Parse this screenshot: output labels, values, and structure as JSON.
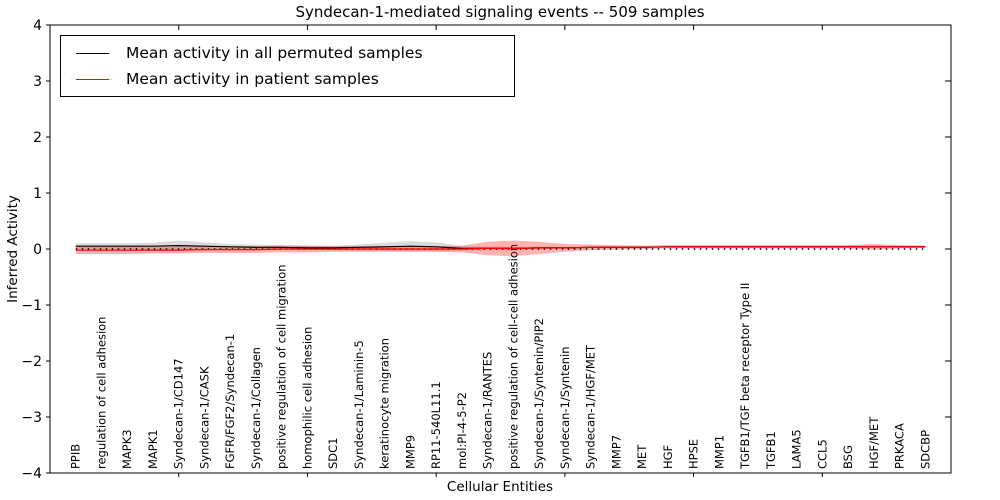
{
  "title": "Syndecan-1-mediated signaling events -- 509 samples",
  "axes": {
    "ylabel": "Inferred Activity",
    "xlabel": "Cellular Entities",
    "ytick_labels": [
      "4",
      "3",
      "2",
      "1",
      "0",
      "−1",
      "−2",
      "−3",
      "−4"
    ],
    "ytick_values": [
      4,
      3,
      2,
      1,
      0,
      -1,
      -2,
      -3,
      -4
    ]
  },
  "legend": {
    "entries": [
      {
        "label": "Mean activity in all permuted samples",
        "color": "#000000"
      },
      {
        "label": "Mean activity in patient samples",
        "color": "#ff0000"
      }
    ]
  },
  "chart_data": {
    "type": "line",
    "title": "Syndecan-1-mediated signaling events -- 509 samples",
    "xlabel": "Cellular Entities",
    "ylabel": "Inferred Activity",
    "ylim": [
      -4,
      4
    ],
    "xlim": [
      0,
      35
    ],
    "grid": false,
    "legend_position": "upper left",
    "categories": [
      "PPIB",
      "regulation of cell adhesion",
      "MAPK3",
      "MAPK1",
      "Syndecan-1/CD147",
      "Syndecan-1/CASK",
      "FGFR/FGF2/Syndecan-1",
      "Syndecan-1/Collagen",
      "positive regulation of cell migration",
      "homophilic cell adhesion",
      "SDC1",
      "Syndecan-1/Laminin-5",
      "keratinocyte migration",
      "MMP9",
      "RP11-540L11.1",
      "mol:PI-4-5-P2",
      "Syndecan-1/RANTES",
      "positive regulation of cell-cell adhesion",
      "Syndecan-1/Syntenin/PIP2",
      "Syndecan-1/Syntenin",
      "Syndecan-1/HGF/MET",
      "MMP7",
      "MET",
      "HGF",
      "HPSE",
      "MMP1",
      "TGFB1/TGF beta receptor Type II",
      "TGFB1",
      "LAMA5",
      "CCL5",
      "BSG",
      "HGF/MET",
      "PRKACA",
      "SDCBP"
    ],
    "series": [
      {
        "name": "Mean activity in all permuted samples",
        "color": "#000000",
        "values": [
          0.05,
          0.05,
          0.05,
          0.05,
          0.06,
          0.05,
          0.04,
          0.03,
          0.03,
          0.02,
          0.02,
          0.03,
          0.04,
          0.05,
          0.04,
          0.01,
          0.01,
          0.01,
          0.02,
          0.02,
          0.03,
          0.03,
          0.03,
          0.04,
          0.04,
          0.04,
          0.04,
          0.04,
          0.04,
          0.04,
          0.04,
          0.04,
          0.04,
          0.04
        ]
      },
      {
        "name": "Mean activity in patient samples",
        "color": "#ff0000",
        "values": [
          -0.02,
          -0.02,
          -0.02,
          -0.02,
          -0.02,
          -0.01,
          -0.01,
          -0.01,
          0.0,
          0.0,
          0.0,
          0.0,
          0.0,
          0.0,
          0.0,
          0.0,
          0.01,
          0.01,
          0.02,
          0.02,
          0.03,
          0.03,
          0.03,
          0.04,
          0.04,
          0.04,
          0.04,
          0.04,
          0.04,
          0.04,
          0.04,
          0.04,
          0.04,
          0.04
        ]
      }
    ],
    "bands": [
      {
        "name": "permuted std band",
        "series_index": 0,
        "color": "rgba(0,0,0,0.15)",
        "halfwidth": [
          0.05,
          0.05,
          0.05,
          0.06,
          0.09,
          0.07,
          0.05,
          0.05,
          0.04,
          0.04,
          0.04,
          0.05,
          0.07,
          0.09,
          0.08,
          0.04,
          0.03,
          0.03,
          0.02,
          0.02,
          0.02,
          0.02,
          0.02,
          0.02,
          0.02,
          0.02,
          0.02,
          0.02,
          0.02,
          0.02,
          0.02,
          0.02,
          0.02,
          0.02
        ]
      },
      {
        "name": "patient std band",
        "series_index": 1,
        "color": "rgba(255,0,0,0.30)",
        "halfwidth": [
          0.07,
          0.07,
          0.07,
          0.06,
          0.06,
          0.06,
          0.06,
          0.06,
          0.06,
          0.06,
          0.05,
          0.05,
          0.05,
          0.05,
          0.05,
          0.06,
          0.12,
          0.14,
          0.11,
          0.07,
          0.05,
          0.04,
          0.03,
          0.03,
          0.03,
          0.03,
          0.03,
          0.03,
          0.03,
          0.03,
          0.03,
          0.05,
          0.03,
          0.02
        ]
      }
    ],
    "zero_line": {
      "y": 0,
      "style": "dotted",
      "color": "#000000"
    },
    "x_major_ticks": [
      5,
      10,
      15,
      20,
      25,
      30
    ]
  }
}
